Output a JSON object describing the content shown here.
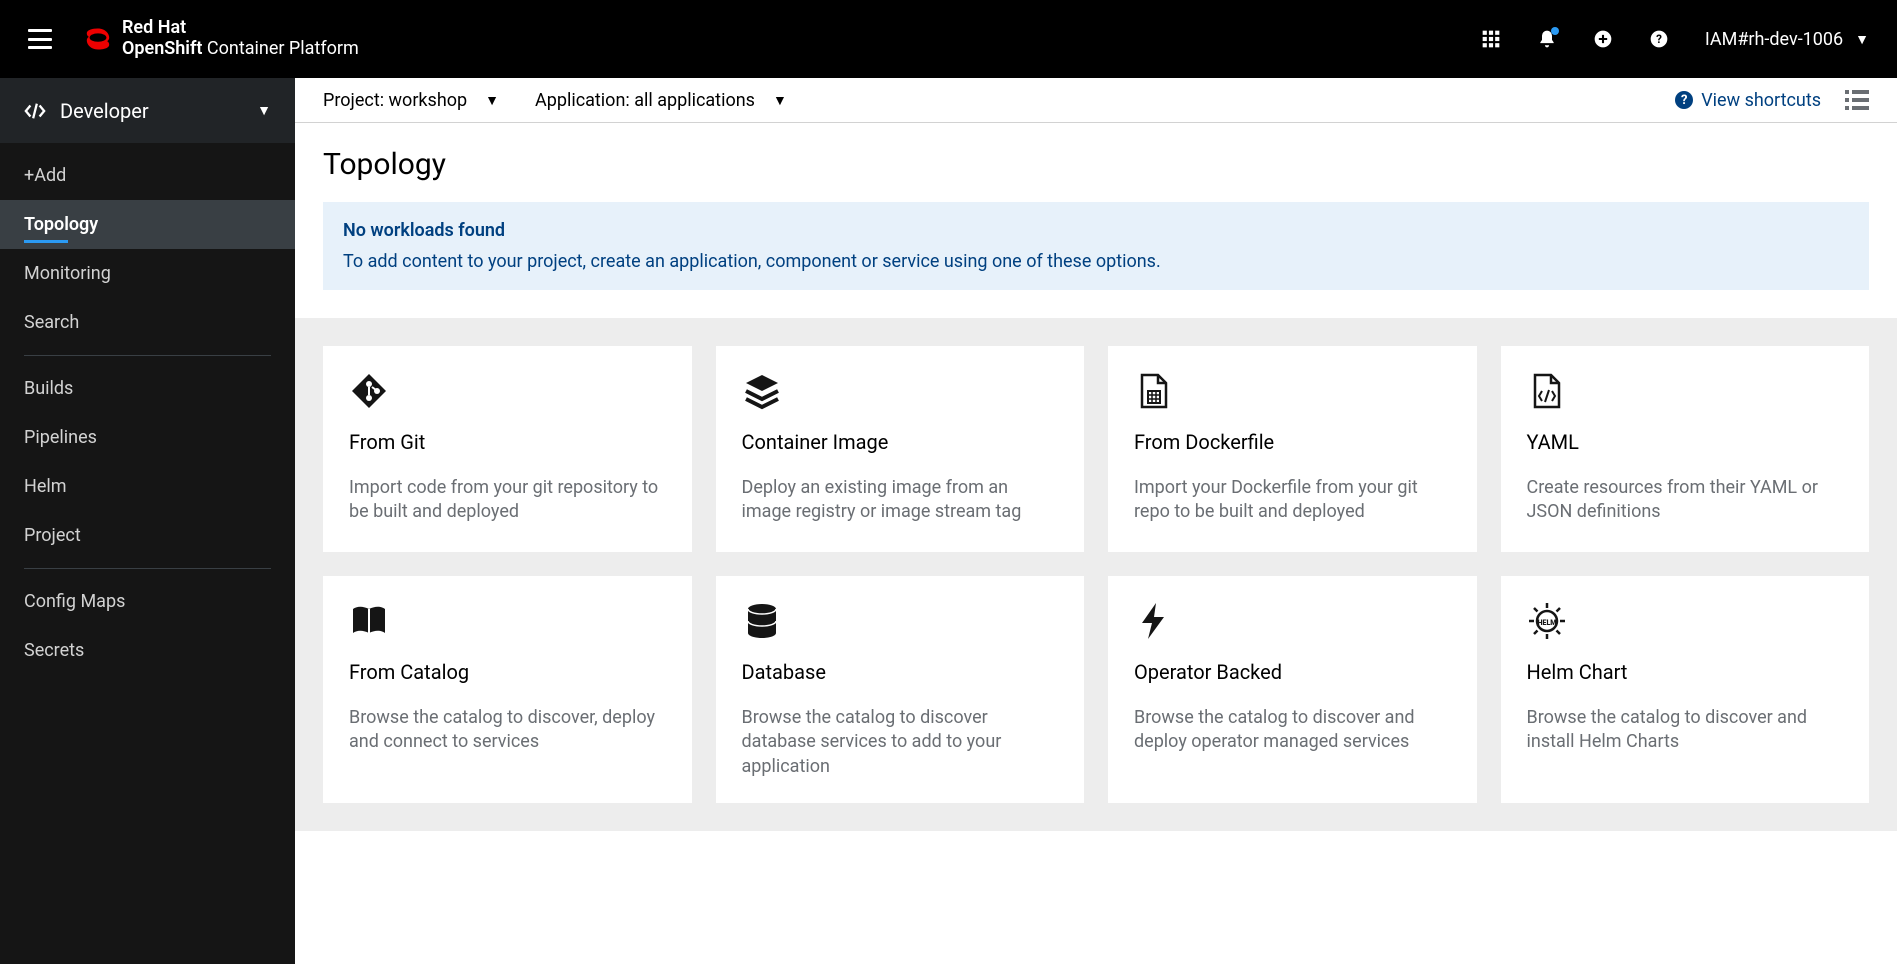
{
  "header": {
    "brand_line1": "Red Hat",
    "brand_line2_bold": "OpenShift",
    "brand_line2_rest": " Container Platform",
    "username": "IAM#rh-dev-1006"
  },
  "sidebar": {
    "perspective_label": "Developer",
    "items": [
      {
        "label": "+Add",
        "active": false
      },
      {
        "label": "Topology",
        "active": true
      },
      {
        "label": "Monitoring",
        "active": false
      },
      {
        "label": "Search",
        "active": false
      }
    ],
    "items2": [
      {
        "label": "Builds"
      },
      {
        "label": "Pipelines"
      },
      {
        "label": "Helm"
      },
      {
        "label": "Project"
      }
    ],
    "items3": [
      {
        "label": "Config Maps"
      },
      {
        "label": "Secrets"
      }
    ]
  },
  "toolbar": {
    "project_selector": "Project: workshop",
    "application_selector": "Application: all applications",
    "shortcuts_label": "View shortcuts"
  },
  "page": {
    "title": "Topology",
    "alert_title": "No workloads found",
    "alert_desc": "To add content to your project, create an application, component or service using one of these options."
  },
  "cards": [
    {
      "title": "From Git",
      "desc": "Import code from your git repository to be built and deployed",
      "icon": "git"
    },
    {
      "title": "Container Image",
      "desc": "Deploy an existing image from an image registry or image stream tag",
      "icon": "layers"
    },
    {
      "title": "From Dockerfile",
      "desc": "Import your Dockerfile from your git repo to be built and deployed",
      "icon": "dockerfile"
    },
    {
      "title": "YAML",
      "desc": "Create resources from their YAML or JSON definitions",
      "icon": "yaml"
    },
    {
      "title": "From Catalog",
      "desc": "Browse the catalog to discover, deploy and connect to services",
      "icon": "catalog"
    },
    {
      "title": "Database",
      "desc": "Browse the catalog to discover database services to add to your application",
      "icon": "database"
    },
    {
      "title": "Operator Backed",
      "desc": "Browse the catalog to discover and deploy operator managed services",
      "icon": "bolt"
    },
    {
      "title": "Helm Chart",
      "desc": "Browse the catalog to discover and install Helm Charts",
      "icon": "helm"
    }
  ]
}
